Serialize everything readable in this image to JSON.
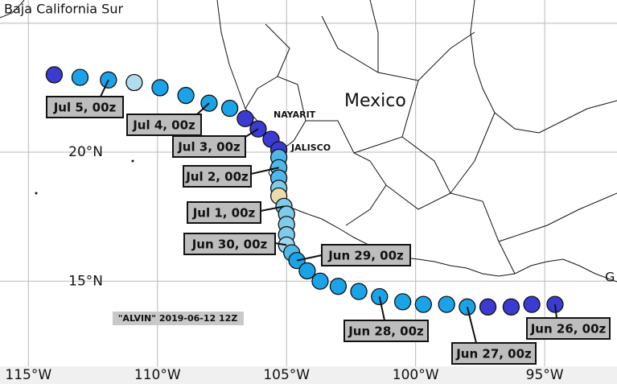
{
  "map": {
    "title": "Baja California Sur",
    "places": [
      {
        "name": "Mexico"
      },
      {
        "name": "NAYARIT"
      },
      {
        "name": "JALISCO"
      },
      {
        "name": "G"
      }
    ],
    "xlim": [
      -116.1,
      -92.2
    ],
    "ylim": [
      11.7,
      25.9
    ],
    "xticks": [
      {
        "value": -115,
        "label": "115°W"
      },
      {
        "value": -110,
        "label": "110°W"
      },
      {
        "value": -105,
        "label": "105°W"
      },
      {
        "value": -100,
        "label": "100°W"
      },
      {
        "value": -95,
        "label": "95°W"
      }
    ],
    "yticks": [
      {
        "value": 25,
        "label": ""
      },
      {
        "value": 20,
        "label": "20°N"
      },
      {
        "value": 15,
        "label": "15°N"
      }
    ],
    "grid": true
  },
  "track": {
    "caption": "\"ALVIN\" 2019-06-12 12Z",
    "points": [
      {
        "lon": -114.0,
        "lat": 23.0,
        "color": "#3b3bd1"
      },
      {
        "lon": -113.0,
        "lat": 22.9,
        "color": "#1ba3e8"
      },
      {
        "lon": -111.9,
        "lat": 22.8,
        "color": "#1ba3e8",
        "label": "Jul 5, 00z"
      },
      {
        "lon": -110.9,
        "lat": 22.7,
        "color": "#b0dcec"
      },
      {
        "lon": -109.9,
        "lat": 22.5,
        "color": "#1ba3e8"
      },
      {
        "lon": -108.9,
        "lat": 22.2,
        "color": "#1ba3e8"
      },
      {
        "lon": -108.0,
        "lat": 21.9,
        "color": "#1ba3e8",
        "label": "Jul 4, 00z"
      },
      {
        "lon": -107.2,
        "lat": 21.7,
        "color": "#1ba3e8"
      },
      {
        "lon": -106.6,
        "lat": 21.3,
        "color": "#3b3bd1"
      },
      {
        "lon": -106.1,
        "lat": 20.9,
        "color": "#3b3bd1",
        "label": "Jul 3, 00z"
      },
      {
        "lon": -105.6,
        "lat": 20.5,
        "color": "#3b3bd1"
      },
      {
        "lon": -105.3,
        "lat": 20.1,
        "color": "#3b3bd1"
      },
      {
        "lon": -105.3,
        "lat": 19.8,
        "color": "#4fb8e8"
      },
      {
        "lon": -105.3,
        "lat": 19.4,
        "color": "#4fb8e8",
        "label": "Jul 2, 00z"
      },
      {
        "lon": -105.3,
        "lat": 19.0,
        "color": "#4fb8e8"
      },
      {
        "lon": -105.3,
        "lat": 18.6,
        "color": "#7fcbea"
      },
      {
        "lon": -105.3,
        "lat": 18.3,
        "color": "#eadcae"
      },
      {
        "lon": -105.1,
        "lat": 17.9,
        "color": "#7fcbea",
        "label": "Jul 1, 00z"
      },
      {
        "lon": -105.0,
        "lat": 17.6,
        "color": "#7fcbea"
      },
      {
        "lon": -105.0,
        "lat": 17.2,
        "color": "#7fcbea"
      },
      {
        "lon": -105.0,
        "lat": 16.8,
        "color": "#7fcbea"
      },
      {
        "lon": -105.0,
        "lat": 16.4,
        "color": "#9dd6ec",
        "label": "Jun 30, 00z"
      },
      {
        "lon": -104.8,
        "lat": 16.1,
        "color": "#4fb8e8"
      },
      {
        "lon": -104.6,
        "lat": 15.8,
        "color": "#1ba3e8",
        "label": "Jun 29, 00z"
      },
      {
        "lon": -104.2,
        "lat": 15.4,
        "color": "#1ba3e8"
      },
      {
        "lon": -103.7,
        "lat": 15.0,
        "color": "#1ba3e8"
      },
      {
        "lon": -103.0,
        "lat": 14.8,
        "color": "#1ba3e8"
      },
      {
        "lon": -102.2,
        "lat": 14.6,
        "color": "#1ba3e8"
      },
      {
        "lon": -101.4,
        "lat": 14.4,
        "color": "#1ba3e8",
        "label": "Jun 28, 00z"
      },
      {
        "lon": -100.5,
        "lat": 14.2,
        "color": "#1ba3e8"
      },
      {
        "lon": -99.7,
        "lat": 14.1,
        "color": "#1ba3e8"
      },
      {
        "lon": -98.8,
        "lat": 14.1,
        "color": "#1ba3e8"
      },
      {
        "lon": -98.0,
        "lat": 14.0,
        "color": "#1ba3e8",
        "label": "Jun 27, 00z"
      },
      {
        "lon": -97.2,
        "lat": 14.0,
        "color": "#3b3bd1"
      },
      {
        "lon": -96.3,
        "lat": 14.0,
        "color": "#3b3bd1"
      },
      {
        "lon": -95.5,
        "lat": 14.1,
        "color": "#3b3bd1"
      },
      {
        "lon": -94.6,
        "lat": 14.1,
        "color": "#3b3bd1",
        "label": "Jun 26, 00z"
      }
    ]
  }
}
